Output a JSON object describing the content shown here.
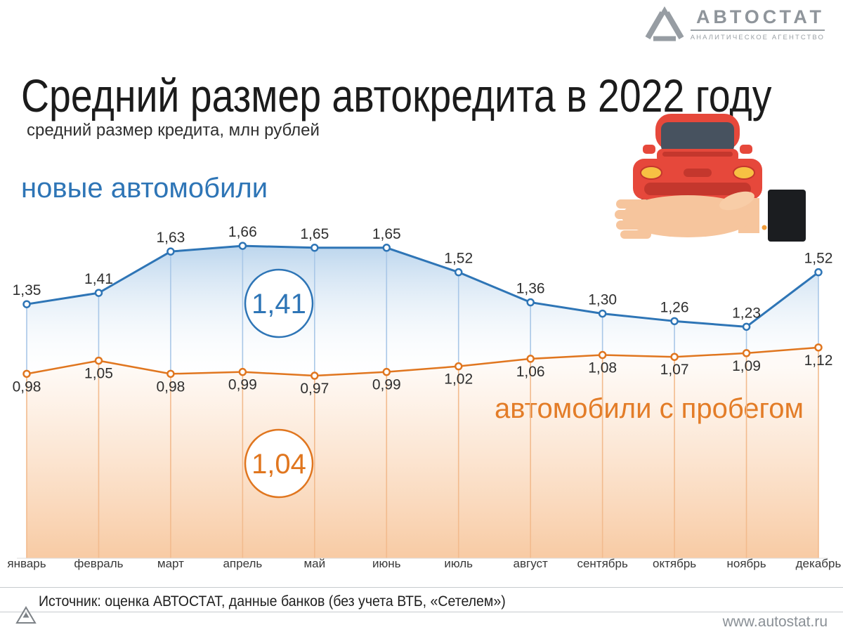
{
  "logo": {
    "name": "АВТОСТАТ",
    "subtitle": "АНАЛИТИЧЕСКОЕ АГЕНТСТВО"
  },
  "header": {
    "title": "Средний размер автокредита в 2022 году",
    "subtitle": "средний размер кредита, млн рублей"
  },
  "chart_data": {
    "type": "line",
    "title": "Средний размер автокредита в 2022 году",
    "ylabel": "средний размер кредита, млн рублей",
    "ylim": [
      0,
      1.9
    ],
    "grid": false,
    "legend_position": "inline",
    "decimal_separator": ",",
    "categories": [
      "январь",
      "февраль",
      "март",
      "апрель",
      "май",
      "июнь",
      "июль",
      "август",
      "сентябрь",
      "октябрь",
      "ноябрь",
      "декабрь"
    ],
    "series": [
      {
        "name": "новые автомобили",
        "color": "#2e75b6",
        "values": [
          1.35,
          1.41,
          1.63,
          1.66,
          1.65,
          1.65,
          1.52,
          1.36,
          1.3,
          1.26,
          1.23,
          1.52
        ],
        "average": "1,41"
      },
      {
        "name": "автомобили с пробегом",
        "color": "#e0761f",
        "values": [
          0.98,
          1.05,
          0.98,
          0.99,
          0.97,
          0.99,
          1.02,
          1.06,
          1.08,
          1.07,
          1.09,
          1.12
        ],
        "average": "1,04"
      }
    ]
  },
  "footer": {
    "source": "Источник: оценка АВТОСТАТ, данные банков (без учета ВТБ, «Сетелем»)",
    "website": "www.autostat.ru"
  }
}
